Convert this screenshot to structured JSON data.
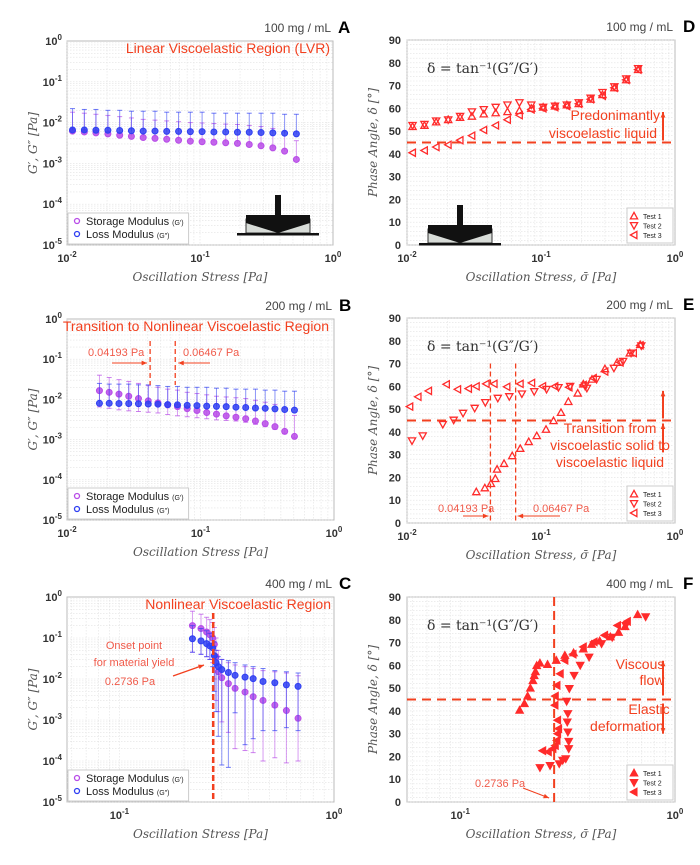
{
  "colors": {
    "storage": "#b84ce8",
    "loss": "#2f3ff2",
    "test": "#ff2b2b",
    "annotation": "#f2401f",
    "grid": "#e2e2e2"
  },
  "labels": {
    "modulus_ylabel": "G′, G″ [Pa]",
    "stress_xlabel": "Oscillation Stress [Pa]",
    "phase_xlabel": "Oscillation Stress, σ̄ [Pa]",
    "phase_ylabel": "Phase Angle, δ [°]",
    "formula": "δ = tan⁻¹(G″/G′)",
    "legend_storage": "Storage Modulus",
    "legend_storage_sym": "(G′)",
    "legend_loss": "Loss Modulus",
    "legend_loss_sym": "(G″)",
    "test1": "Test 1",
    "test2": "Test 2",
    "test3": "Test 3"
  },
  "chart_data": [
    {
      "id": "A",
      "type": "scatter",
      "letter": "A",
      "title": "100 mg / mL",
      "xscale": "log",
      "yscale": "log",
      "xlim": [
        0.01,
        1
      ],
      "ylim": [
        1e-05,
        1
      ],
      "xticks": [
        -2,
        -1,
        0
      ],
      "yticks": [
        -5,
        -4,
        -3,
        -2,
        -1,
        0
      ],
      "xlabel": "Oscillation Stress [Pa]",
      "ylabel": "G′, G″ [Pa]",
      "legend": "bottom-left",
      "annotations": [
        "Linear Viscoelastic Region (LVR)"
      ],
      "x": [
        0.011,
        0.0135,
        0.0165,
        0.0203,
        0.0249,
        0.0305,
        0.0374,
        0.0459,
        0.0562,
        0.069,
        0.0846,
        0.1037,
        0.1272,
        0.156,
        0.1913,
        0.2346,
        0.2877,
        0.3528,
        0.4326,
        0.5305
      ],
      "series": [
        {
          "name": "Storage Modulus (G′)",
          "values": [
            0.0062,
            0.0059,
            0.0056,
            0.0053,
            0.0049,
            0.0046,
            0.0043,
            0.0041,
            0.0039,
            0.0037,
            0.0035,
            0.0034,
            0.0033,
            0.0032,
            0.0031,
            0.0029,
            0.0027,
            0.0024,
            0.002,
            0.00125
          ],
          "err_hi": [
            0.018,
            0.017,
            0.016,
            0.015,
            0.014,
            0.013,
            0.012,
            0.0115,
            0.011,
            0.0105,
            0.01,
            0.0098,
            0.0095,
            0.0092,
            0.009,
            0.0085,
            0.008,
            0.0072,
            0.006,
            0.0036
          ]
        },
        {
          "name": "Loss Modulus (G″)",
          "values": [
            0.0066,
            0.0066,
            0.0065,
            0.0065,
            0.0064,
            0.0063,
            0.0062,
            0.0062,
            0.0061,
            0.0061,
            0.006,
            0.006,
            0.0059,
            0.0059,
            0.0058,
            0.0058,
            0.0057,
            0.0056,
            0.0055,
            0.0053
          ],
          "err_hi": [
            0.022,
            0.021,
            0.021,
            0.02,
            0.02,
            0.019,
            0.019,
            0.019,
            0.018,
            0.018,
            0.018,
            0.018,
            0.017,
            0.017,
            0.017,
            0.017,
            0.017,
            0.017,
            0.016,
            0.016
          ]
        }
      ]
    },
    {
      "id": "B",
      "type": "scatter",
      "letter": "B",
      "title": "200 mg / mL",
      "xscale": "log",
      "yscale": "log",
      "xlim": [
        0.01,
        1
      ],
      "ylim": [
        1e-05,
        1
      ],
      "xticks": [
        -2,
        -1,
        0
      ],
      "yticks": [
        -5,
        -4,
        -3,
        -2,
        -1,
        0
      ],
      "xlabel": "Oscillation Stress [Pa]",
      "ylabel": "G′, G″ [Pa]",
      "legend": "bottom-left",
      "annotations": [
        "Transition to Nonlinear Viscoelastic Region",
        "0.04193 Pa",
        "0.06467 Pa"
      ],
      "vlines": [
        0.04193,
        0.06467
      ],
      "x": [
        0.0175,
        0.0207,
        0.0245,
        0.029,
        0.0343,
        0.0406,
        0.048,
        0.0568,
        0.0672,
        0.0795,
        0.0941,
        0.1113,
        0.1317,
        0.1558,
        0.1843,
        0.2181,
        0.258,
        0.3053,
        0.3612,
        0.4273,
        0.5056
      ],
      "series": [
        {
          "name": "Storage Modulus (G′)",
          "values": [
            0.0165,
            0.015,
            0.0135,
            0.012,
            0.0105,
            0.0092,
            0.0082,
            0.0073,
            0.0066,
            0.0059,
            0.0053,
            0.0047,
            0.0043,
            0.0039,
            0.0036,
            0.0033,
            0.0029,
            0.0025,
            0.0021,
            0.0016,
            0.0012
          ],
          "err_hi": [
            0.04,
            0.035,
            0.031,
            0.028,
            0.025,
            0.022,
            0.02,
            0.018,
            0.017,
            0.015,
            0.014,
            0.013,
            0.012,
            0.0115,
            0.011,
            0.0105,
            0.0095,
            0.0085,
            0.0075,
            0.006,
            0.004
          ],
          "err_lo": [
            0.0065,
            0.006,
            0.0055,
            0.0052,
            0.005,
            0.0048,
            0.0046,
            0.0042,
            0.0039,
            0.0037,
            0.0035,
            0.0033,
            0.0031,
            0.003,
            0.0029,
            0.0027,
            0.0024,
            0.0021,
            0.0018,
            0.0014,
            0.0011
          ]
        },
        {
          "name": "Loss Modulus (G″)",
          "values": [
            0.008,
            0.008,
            0.0079,
            0.0079,
            0.0078,
            0.0077,
            0.0076,
            0.0074,
            0.0073,
            0.0071,
            0.007,
            0.0068,
            0.0067,
            0.0066,
            0.0064,
            0.0063,
            0.0061,
            0.006,
            0.0058,
            0.0056,
            0.0054
          ],
          "err_hi": [
            0.025,
            0.024,
            0.024,
            0.024,
            0.023,
            0.023,
            0.022,
            0.021,
            0.021,
            0.02,
            0.02,
            0.02,
            0.019,
            0.019,
            0.018,
            0.018,
            0.018,
            0.017,
            0.017,
            0.016,
            0.016
          ]
        }
      ]
    },
    {
      "id": "C",
      "type": "scatter",
      "letter": "C",
      "title": "400 mg / mL",
      "xscale": "log",
      "yscale": "log",
      "xlim": [
        0.057,
        1
      ],
      "ylim": [
        1e-05,
        1
      ],
      "xticks": [
        -1,
        0
      ],
      "yticks": [
        -5,
        -4,
        -3,
        -2,
        -1,
        0
      ],
      "xlabel": "Oscillation Stress [Pa]",
      "ylabel": "G′, G″ [Pa]",
      "legend": "bottom-left",
      "annotations": [
        "Nonlinear Viscoelastic Region",
        "Onset point",
        "for material yield",
        "0.2736 Pa"
      ],
      "vlines": [
        0.2736
      ],
      "x": [
        0.219,
        0.24,
        0.255,
        0.264,
        0.272,
        0.277,
        0.282,
        0.289,
        0.3,
        0.322,
        0.346,
        0.385,
        0.42,
        0.467,
        0.53,
        0.6,
        0.68
      ],
      "series": [
        {
          "name": "Storage Modulus (G′)",
          "values": [
            0.2,
            0.17,
            0.14,
            0.12,
            0.1,
            0.07,
            0.035,
            0.015,
            0.0107,
            0.0077,
            0.0059,
            0.0048,
            0.0037,
            0.003,
            0.0023,
            0.0017,
            0.0011
          ],
          "err_hi": [
            0.45,
            0.38,
            0.32,
            0.28,
            0.24,
            0.18,
            0.1,
            0.05,
            0.03,
            0.025,
            0.022,
            0.02,
            0.018,
            0.016,
            0.015,
            0.014,
            0.012
          ],
          "err_lo": [
            0.045,
            0.04,
            0.035,
            0.03,
            0.025,
            0.01,
            0.003,
            0.0016,
            0.0009,
            0.0005,
            0.0002,
            0.00018,
            0.00016,
            0.0001,
            0.00012,
            9e-05,
            0.0001
          ]
        },
        {
          "name": "Loss Modulus (G″)",
          "values": [
            0.096,
            0.085,
            0.073,
            0.064,
            0.058,
            0.037,
            0.025,
            0.02,
            0.017,
            0.0144,
            0.0123,
            0.0111,
            0.0102,
            0.0087,
            0.0081,
            0.0072,
            0.0066
          ],
          "err_hi": [
            0.2,
            0.17,
            0.15,
            0.13,
            0.11,
            0.08,
            0.05,
            0.035,
            0.03,
            0.028,
            0.025,
            0.022,
            0.02,
            0.018,
            0.016,
            0.015,
            0.014
          ],
          "err_lo": [
            0.045,
            0.04,
            0.035,
            0.03,
            0.02,
            0.005,
            0.0016,
            0.0004,
            8e-05,
            7e-05,
            0.0015,
            0.00025,
            0.00035,
            0.00055,
            0.00055,
            0.00065,
            0.00055
          ]
        }
      ]
    },
    {
      "id": "D",
      "type": "scatter",
      "letter": "D",
      "title": "100 mg / mL",
      "xscale": "log",
      "yscale": "linear",
      "xlim": [
        0.01,
        1
      ],
      "ylim": [
        0,
        90
      ],
      "xticks": [
        -2,
        -1,
        0
      ],
      "yticks": [
        0,
        10,
        20,
        30,
        40,
        50,
        60,
        70,
        80,
        90
      ],
      "xlabel": "Oscillation Stress, σ̄ [Pa]",
      "ylabel": "Phase Angle, δ [°]",
      "legend": "bottom-right",
      "annotations": [
        "Predonimantly",
        "viscoelastic liquid"
      ],
      "hline": 45,
      "x": [
        0.011,
        0.0135,
        0.0165,
        0.0203,
        0.0249,
        0.0305,
        0.0374,
        0.0459,
        0.0562,
        0.069,
        0.0846,
        0.1037,
        0.1272,
        0.156,
        0.1913,
        0.2346,
        0.2877,
        0.3528,
        0.4326,
        0.5305
      ],
      "series": [
        {
          "name": "Test 1",
          "marker": "up",
          "values": [
            52,
            52.5,
            54,
            55,
            56,
            56.5,
            57.5,
            58,
            58.5,
            59,
            60,
            60.5,
            61,
            61.5,
            62,
            64,
            66,
            69,
            72.5,
            77
          ]
        },
        {
          "name": "Test 2",
          "marker": "down",
          "values": [
            52.5,
            53,
            54.5,
            55,
            56.5,
            58.5,
            59.5,
            60.5,
            61.5,
            62.5,
            61.5,
            60.5,
            61,
            61.5,
            62.5,
            64.5,
            67,
            69.5,
            73,
            77.5
          ]
        },
        {
          "name": "Test 3",
          "marker": "left",
          "values": [
            40.5,
            41.5,
            43,
            44,
            46,
            48,
            50.5,
            52.5,
            55,
            57,
            59.5,
            60,
            60.5,
            61,
            62,
            64,
            65.5,
            69,
            72.5,
            77
          ]
        }
      ]
    },
    {
      "id": "E",
      "type": "scatter",
      "letter": "E",
      "title": "200 mg / mL",
      "xscale": "log",
      "yscale": "linear",
      "xlim": [
        0.01,
        1
      ],
      "ylim": [
        0,
        90
      ],
      "xticks": [
        -2,
        -1,
        0
      ],
      "yticks": [
        0,
        10,
        20,
        30,
        40,
        50,
        60,
        70,
        80,
        90
      ],
      "xlabel": "Oscillation Stress, σ̄ [Pa]",
      "ylabel": "Phase Angle, δ [°]",
      "legend": "bottom-right",
      "annotations": [
        "Transition from",
        "viscoelastic solid to",
        "viscoelastic liquid",
        "0.04193 Pa",
        "0.06467 Pa"
      ],
      "hline": 45,
      "vlines": [
        0.04193,
        0.06467
      ],
      "series": [
        {
          "name": "Test 1",
          "marker": "up",
          "x": [
            0.0329,
            0.0381,
            0.0423,
            0.0456,
            0.047,
            0.053,
            0.061,
            0.07,
            0.081,
            0.093,
            0.109,
            0.124,
            0.141,
            0.16,
            0.188,
            0.207,
            0.24,
            0.3,
            0.37,
            0.46,
            0.55
          ],
          "values": [
            13.7,
            15.4,
            17.3,
            19.5,
            23.6,
            26.1,
            29.5,
            32.7,
            35.7,
            38.3,
            41.1,
            44.9,
            48.5,
            53.3,
            57,
            61,
            63.1,
            67.7,
            70.5,
            74.6,
            78.3
          ]
        },
        {
          "name": "Test 2",
          "marker": "down",
          "x": [
            0.0109,
            0.0131,
            0.0185,
            0.0223,
            0.0262,
            0.032,
            0.0384,
            0.0476,
            0.058,
            0.072,
            0.089,
            0.11,
            0.135,
            0.165,
            0.213,
            0.22,
            0.26,
            0.35,
            0.41,
            0.47,
            0.56
          ],
          "values": [
            36.1,
            38.3,
            43.3,
            45.2,
            48.2,
            50.4,
            52.9,
            54.8,
            55.5,
            56.7,
            57.7,
            58.7,
            59.5,
            60,
            60.2,
            59.2,
            63.1,
            68,
            71,
            74.6,
            77.8
          ]
        },
        {
          "name": "Test 3",
          "marker": "left",
          "x": [
            0.0105,
            0.0121,
            0.0145,
            0.0197,
            0.0239,
            0.0288,
            0.0329,
            0.039,
            0.0447,
            0.0557,
            0.07,
            0.0853,
            0.103,
            0.127,
            0.162,
            0.207,
            0.246,
            0.3,
            0.39,
            0.49,
            0.55
          ],
          "values": [
            51.1,
            55.4,
            58,
            60.9,
            58.7,
            59,
            60,
            61.1,
            61.1,
            59.8,
            61.1,
            61.5,
            60,
            60,
            59.6,
            60.6,
            63.6,
            66.5,
            70.5,
            74.6,
            78
          ]
        }
      ]
    },
    {
      "id": "F",
      "type": "scatter",
      "letter": "F",
      "title": "400 mg / mL",
      "xscale": "log",
      "yscale": "linear",
      "xlim": [
        0.0565,
        1
      ],
      "ylim": [
        0,
        90
      ],
      "xticks": [
        -1,
        0
      ],
      "yticks": [
        0,
        10,
        20,
        30,
        40,
        50,
        60,
        70,
        80,
        90
      ],
      "xlabel": "Oscillation Stress, σ̄ [Pa]",
      "ylabel": "Phase Angle, δ [°]",
      "legend": "bottom-right",
      "annotations": [
        "Viscous",
        "flow",
        "Elastic",
        "deformation",
        "0.2736 Pa"
      ],
      "hline": 45,
      "vlines": [
        0.2736
      ],
      "series": [
        {
          "name": "Test 1",
          "marker": "up-filled",
          "x": [
            0.189,
            0.199,
            0.206,
            0.212,
            0.218,
            0.221,
            0.224,
            0.227,
            0.235,
            0.255,
            0.28,
            0.307,
            0.337,
            0.374,
            0.409,
            0.446,
            0.5,
            0.546,
            0.585,
            0.67
          ],
          "values": [
            40.3,
            43.2,
            46.5,
            50,
            53.3,
            55.5,
            57.2,
            59.9,
            61,
            60.4,
            62.2,
            64.4,
            65.5,
            67.2,
            69.2,
            70.7,
            72.5,
            74.5,
            77,
            82.3
          ]
        },
        {
          "name": "Test 2",
          "marker": "down-filled",
          "x": [
            0.235,
            0.262,
            0.289,
            0.3,
            0.31,
            0.32,
            0.32,
            0.317,
            0.315,
            0.317,
            0.313,
            0.322,
            0.339,
            0.362,
            0.398,
            0.455,
            0.51,
            0.59,
            0.73
          ],
          "values": [
            15.1,
            16,
            16.8,
            18.3,
            19,
            23.4,
            26.6,
            30.7,
            35.1,
            38.8,
            44.2,
            49.8,
            55.6,
            60,
            63.6,
            69.5,
            72.3,
            77.5,
            81.3
          ]
        },
        {
          "name": "Test 3",
          "marker": "left-filled",
          "x": [
            0.242,
            0.257,
            0.27,
            0.277,
            0.282,
            0.284,
            0.287,
            0.284,
            0.276,
            0.277,
            0.282,
            0.292,
            0.307,
            0.335,
            0.374,
            0.42,
            0.47,
            0.54,
            0.6
          ],
          "values": [
            22.5,
            22,
            23.4,
            24.8,
            27,
            30,
            32.2,
            35.9,
            42.5,
            46.5,
            51.2,
            56.3,
            62.2,
            64.9,
            68.1,
            70.3,
            73.2,
            77.5,
            79.3
          ]
        }
      ]
    }
  ]
}
